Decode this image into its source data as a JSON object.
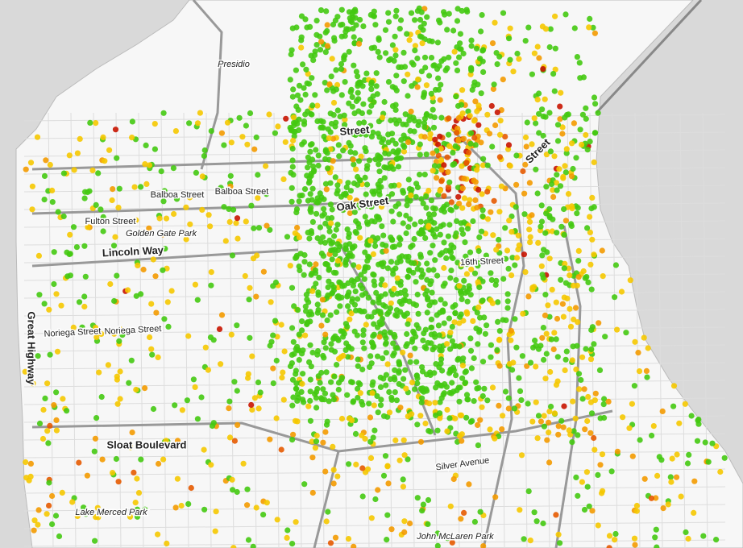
{
  "map": {
    "labels": [
      {
        "text": "Presidio"
      },
      {
        "text": "Street"
      },
      {
        "text": "Balboa Street"
      },
      {
        "text": "Balboa Street"
      },
      {
        "text": "Fulton Street"
      },
      {
        "text": "Golden Gate Park"
      },
      {
        "text": "Lincoln Way"
      },
      {
        "text": "Oak Street"
      },
      {
        "text": "16th Street"
      },
      {
        "text": "Great Highway"
      },
      {
        "text": "Noriega Street"
      },
      {
        "text": "Noriega Street"
      },
      {
        "text": "Sloat Boulevard"
      },
      {
        "text": "Silver Avenue"
      },
      {
        "text": "Lake Merced Park"
      },
      {
        "text": "John McLaren Park"
      },
      {
        "text": "Street"
      }
    ]
  }
}
